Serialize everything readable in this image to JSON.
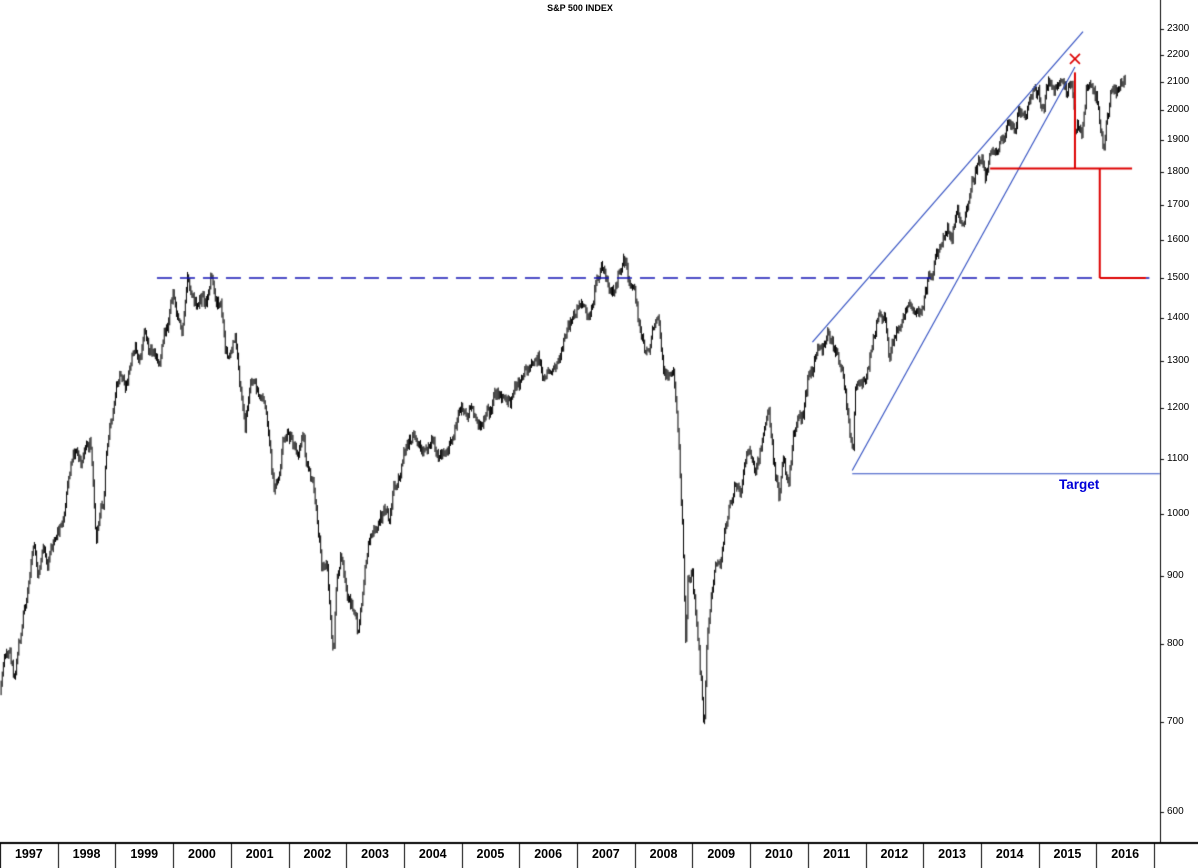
{
  "chart": {
    "title": "S&P 500 INDEX",
    "target_label": "Target",
    "colors": {
      "price": "#000000",
      "trendline_blue": "#2e4cc0",
      "dashed_blue": "#1212b4",
      "annotation_red": "#dd0000",
      "target_text": "#0000d9",
      "axis_text": "#000000",
      "background": "#ffffff"
    }
  },
  "chart_data": {
    "type": "line",
    "title": "S&P 500 INDEX",
    "xlabel": "",
    "ylabel": "",
    "x_axis": {
      "ticks": [
        1997,
        1998,
        1999,
        2000,
        2001,
        2002,
        2003,
        2004,
        2005,
        2006,
        2007,
        2008,
        2009,
        2010,
        2011,
        2012,
        2013,
        2014,
        2015,
        2016
      ]
    },
    "y_axis": {
      "scale": "log",
      "ticks": [
        600,
        700,
        800,
        900,
        1000,
        1100,
        1200,
        1300,
        1400,
        1500,
        1600,
        1700,
        1800,
        1900,
        2000,
        2100,
        2200,
        2300
      ],
      "ylim": [
        600,
        2300
      ]
    },
    "series": [
      {
        "name": "S&P 500 weekly price",
        "start_year": 1997.0,
        "cadence": "monthly closes (rendered as interpolated weekly range bars)",
        "monthly_closes": [
          741,
          786,
          791,
          757,
          801,
          848,
          885,
          954,
          899,
          947,
          915,
          955,
          970,
          980,
          1049,
          1102,
          1112,
          1091,
          1134,
          1121,
          957,
          1017,
          1099,
          1164,
          1229,
          1280,
          1238,
          1286,
          1335,
          1302,
          1373,
          1329,
          1320,
          1283,
          1363,
          1389,
          1469,
          1394,
          1366,
          1499,
          1452,
          1421,
          1455,
          1431,
          1518,
          1437,
          1429,
          1315,
          1320,
          1366,
          1240,
          1160,
          1249,
          1256,
          1224,
          1211,
          1134,
          1041,
          1060,
          1139,
          1148,
          1130,
          1107,
          1147,
          1077,
          1067,
          990,
          912,
          916,
          815,
          886,
          936,
          880,
          856,
          841,
          848,
          917,
          964,
          975,
          990,
          1008,
          996,
          1051,
          1058,
          1112,
          1131,
          1145,
          1126,
          1107,
          1121,
          1141,
          1102,
          1104,
          1115,
          1130,
          1174,
          1212,
          1181,
          1204,
          1181,
          1157,
          1192,
          1191,
          1234,
          1220,
          1229,
          1207,
          1249,
          1248,
          1280,
          1281,
          1295,
          1311,
          1270,
          1270,
          1277,
          1304,
          1336,
          1378,
          1401,
          1418,
          1438,
          1407,
          1421,
          1482,
          1531,
          1503,
          1455,
          1474,
          1527,
          1549,
          1481,
          1468,
          1379,
          1331,
          1323,
          1386,
          1400,
          1280,
          1267,
          1283,
          1166,
          969,
          896,
          903,
          826,
          735,
          798,
          873,
          919,
          919,
          987,
          1021,
          1057,
          1036,
          1096,
          1115,
          1074,
          1104,
          1169,
          1187,
          1089,
          1031,
          1102,
          1049,
          1141,
          1183,
          1181,
          1258,
          1286,
          1327,
          1326,
          1364,
          1345,
          1321,
          1292,
          1219,
          1131,
          1253,
          1247,
          1258,
          1312,
          1366,
          1408,
          1398,
          1310,
          1362,
          1379,
          1407,
          1441,
          1412,
          1416,
          1426,
          1498,
          1515,
          1569,
          1598,
          1631,
          1606,
          1686,
          1633,
          1682,
          1757,
          1806,
          1848,
          1783,
          1859,
          1872,
          1884,
          1924,
          1960,
          1931,
          2003,
          1972,
          2018,
          2068,
          2059,
          1995,
          2105,
          2068,
          2086,
          2107,
          2063,
          2104,
          1972,
          1920,
          2079,
          2080,
          2044,
          1940,
          1932,
          2060,
          2065,
          2097,
          2099
        ],
        "extra_points": [
          [
            1998.79,
            1005
          ],
          [
            2002.78,
            790
          ],
          [
            2003.2,
            818
          ],
          [
            2008.89,
            790
          ],
          [
            2009.2,
            688
          ],
          [
            2011.78,
            1103
          ],
          [
            2015.645,
            1905
          ],
          [
            2016.12,
            1864
          ]
        ]
      }
    ],
    "annotations": [
      {
        "id": "resistance-1500-dashed",
        "type": "hline",
        "style": "dashed",
        "value": 1500,
        "x_from": 1999.72,
        "x_to": 2016.92,
        "color": "#1212b4",
        "width": 1.4
      },
      {
        "id": "rising-wedge-upper",
        "type": "segment",
        "style": "solid",
        "from": {
          "x": 2011.08,
          "v": 1344
        },
        "to": {
          "x": 2015.77,
          "v": 2290
        },
        "color": "#2e4cc0",
        "width": 1.1
      },
      {
        "id": "rising-wedge-lower",
        "type": "segment",
        "style": "solid",
        "from": {
          "x": 2011.77,
          "v": 1078
        },
        "to": {
          "x": 2015.63,
          "v": 2155
        },
        "color": "#2e4cc0",
        "width": 1.1
      },
      {
        "id": "target-level-line",
        "type": "hline",
        "style": "solid",
        "value": 1072,
        "x_from": 2011.77,
        "x_to": 2017.1,
        "color": "#2e4cc0",
        "width": 1.1
      },
      {
        "id": "measured-move-top-drop",
        "type": "vline",
        "style": "solid",
        "x": 2015.63,
        "v_from": 2135,
        "v_to": 1810,
        "color": "#dd0000",
        "width": 2
      },
      {
        "id": "support-1810",
        "type": "hline",
        "style": "solid",
        "value": 1810,
        "x_from": 2014.16,
        "x_to": 2016.62,
        "color": "#dd0000",
        "width": 2
      },
      {
        "id": "projected-drop-to-1500",
        "type": "vline",
        "style": "solid",
        "x": 2016.06,
        "v_from": 1810,
        "v_to": 1500,
        "color": "#dd0000",
        "width": 2
      },
      {
        "id": "projected-level-1500",
        "type": "hline",
        "style": "solid",
        "value": 1500,
        "x_from": 2016.06,
        "x_to": 2016.86,
        "color": "#dd0000",
        "width": 2
      },
      {
        "id": "peak-x-marker",
        "type": "x_marker",
        "x": 2015.63,
        "v": 2185,
        "size": 5,
        "color": "#dd0000",
        "width": 1.6
      }
    ]
  }
}
